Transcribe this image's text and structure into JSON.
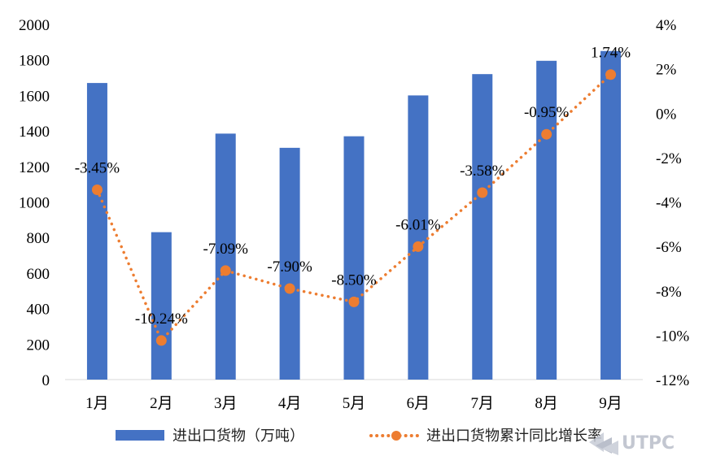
{
  "chart_data": {
    "type": "bar+line",
    "categories": [
      "1月",
      "2月",
      "3月",
      "4月",
      "5月",
      "6月",
      "7月",
      "8月",
      "9月"
    ],
    "series": [
      {
        "name": "进出口货物（万吨）",
        "type": "bar",
        "axis": "left",
        "color": "#4472C4",
        "values": [
          1670,
          830,
          1385,
          1305,
          1370,
          1600,
          1720,
          1795,
          1850
        ]
      },
      {
        "name": "进出口货物累计同比增长率",
        "type": "line",
        "axis": "right",
        "color": "#ED7D31",
        "values": [
          -3.45,
          -10.24,
          -7.09,
          -7.9,
          -8.5,
          -6.01,
          -3.58,
          -0.95,
          1.74
        ],
        "labels": [
          "-3.45%",
          "-10.24%",
          "-7.09%",
          "-7.90%",
          "-8.50%",
          "-6.01%",
          "-3.58%",
          "-0.95%",
          "1.74%"
        ]
      }
    ],
    "y_left": {
      "min": 0,
      "max": 2000,
      "ticks": [
        "0",
        "200",
        "400",
        "600",
        "800",
        "1000",
        "1200",
        "1400",
        "1600",
        "1800",
        "2000"
      ]
    },
    "y_right": {
      "min": -12,
      "max": 4,
      "ticks": [
        "-12%",
        "-10%",
        "-8%",
        "-6%",
        "-4%",
        "-2%",
        "0%",
        "2%",
        "4%"
      ]
    },
    "grid": false,
    "legend": "bottom",
    "title": "",
    "xlabel": "",
    "ylabel": ""
  },
  "watermark": {
    "text": "UTPC"
  }
}
